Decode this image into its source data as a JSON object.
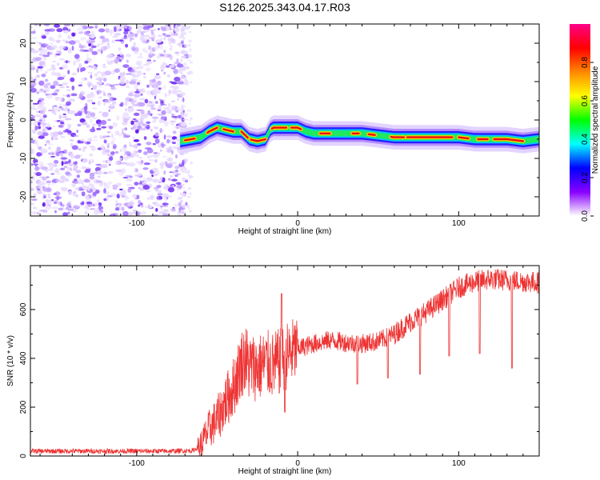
{
  "figure_title": "S126.2025.343.04.17.R03",
  "chart_data": [
    {
      "type": "heatmap",
      "name": "spectrogram",
      "xlabel": "Height of straight line (km)",
      "ylabel": "Frequency (Hz)",
      "xlim": [
        -166,
        150
      ],
      "ylim": [
        -25,
        25
      ],
      "xticks": [
        -100,
        0,
        100
      ],
      "xtick_labels": [
        "-100",
        "0",
        "100"
      ],
      "yticks": [
        -20,
        -10,
        0,
        10,
        20
      ],
      "ytick_labels": [
        "-20",
        "-10",
        "0",
        "10",
        "20"
      ],
      "noise_region_x": [
        -166,
        -73
      ],
      "signal_track": {
        "x": [
          -73,
          -66,
          -60,
          -55,
          -50,
          -45,
          -40,
          -35,
          -30,
          -25,
          -20,
          -17,
          -15,
          -10,
          -5,
          0,
          5,
          10,
          20,
          30,
          40,
          50,
          60,
          70,
          80,
          90,
          100,
          110,
          120,
          130,
          140,
          150
        ],
        "y": [
          -5.5,
          -5.0,
          -4.5,
          -3.0,
          -2.0,
          -2.5,
          -3.0,
          -3.0,
          -5.0,
          -5.5,
          -5.0,
          -2.5,
          -2.0,
          -2.0,
          -2.0,
          -2.0,
          -3.0,
          -3.5,
          -3.5,
          -3.5,
          -3.5,
          -4.0,
          -4.5,
          -4.5,
          -4.5,
          -4.5,
          -4.5,
          -5.0,
          -5.0,
          -5.0,
          -5.5,
          -5.0
        ]
      },
      "colorbar": {
        "label": "Normalized spectral amplitude",
        "range": [
          0,
          1
        ],
        "ticks": [
          0.0,
          0.2,
          0.4,
          0.6,
          0.8
        ],
        "tick_labels": [
          "0.0",
          "0.2",
          "0.4",
          "0.6",
          "0.8"
        ],
        "colormap": [
          "#ffffff",
          "#8800ff",
          "#0000ff",
          "#00ffff",
          "#00ff00",
          "#ffff00",
          "#ff8800",
          "#ff0000",
          "#ff0088"
        ]
      }
    },
    {
      "type": "line",
      "name": "snr",
      "xlabel": "Height of straight line (km)",
      "ylabel": "SNR (10 * v/v)",
      "xlim": [
        -166,
        150
      ],
      "ylim": [
        0,
        780
      ],
      "xticks": [
        -100,
        0,
        100
      ],
      "xtick_labels": [
        "-100",
        "0",
        "100"
      ],
      "yticks": [
        0,
        200,
        400,
        600
      ],
      "ytick_labels": [
        "0",
        "200",
        "400",
        "600"
      ],
      "color": "#ee3333",
      "trend": {
        "x": [
          -166,
          -80,
          -65,
          -60,
          -55,
          -50,
          -45,
          -40,
          -35,
          -33,
          -30,
          -25,
          -20,
          -15,
          -10,
          -5,
          0,
          10,
          20,
          30,
          40,
          50,
          60,
          70,
          80,
          90,
          100,
          110,
          120,
          130,
          140,
          150
        ],
        "y": [
          20,
          20,
          22,
          45,
          110,
          150,
          220,
          280,
          380,
          400,
          370,
          360,
          380,
          370,
          390,
          420,
          440,
          460,
          475,
          465,
          460,
          470,
          500,
          550,
          590,
          640,
          690,
          715,
          725,
          720,
          715,
          710
        ]
      },
      "spikes": [
        {
          "x": -10,
          "y": 665
        },
        {
          "x": -8,
          "y": 180
        },
        {
          "x": 37,
          "y": 295
        },
        {
          "x": 56,
          "y": 320
        },
        {
          "x": 76,
          "y": 335
        },
        {
          "x": 94,
          "y": 410
        },
        {
          "x": 113,
          "y": 420
        },
        {
          "x": 133,
          "y": 360
        }
      ]
    }
  ]
}
